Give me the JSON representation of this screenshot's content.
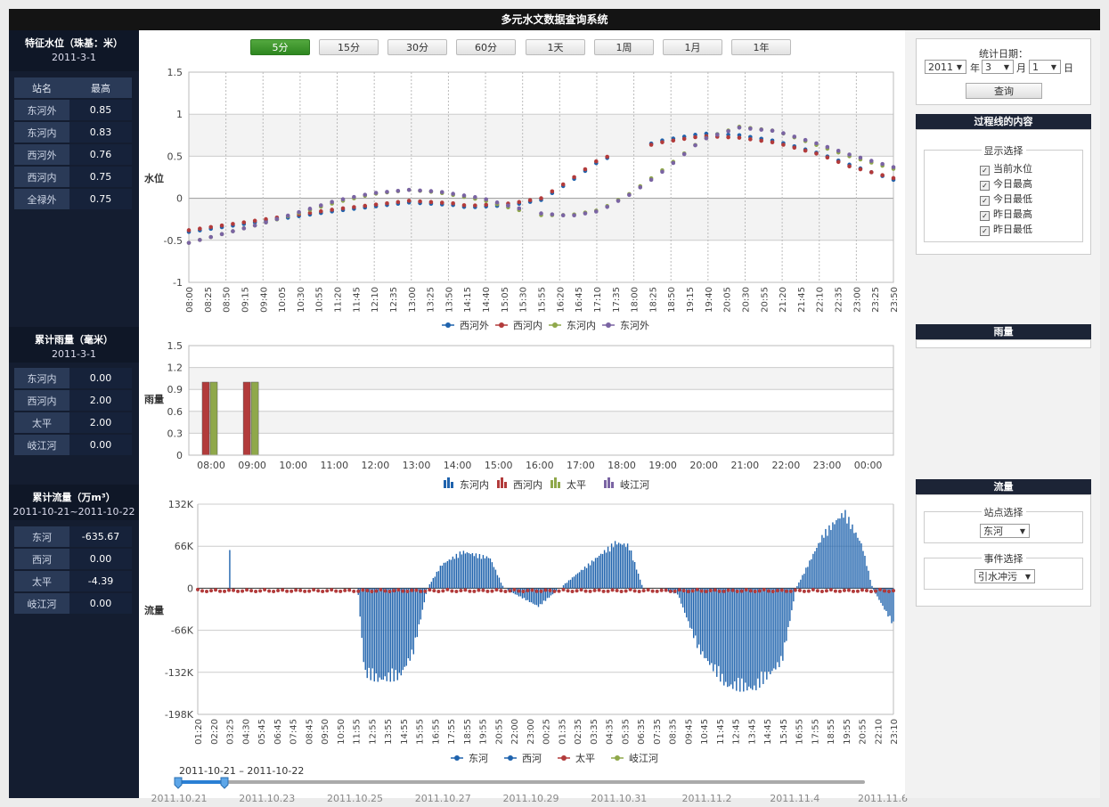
{
  "app": {
    "title": "多元水文数据查询系统"
  },
  "left": {
    "water": {
      "title": "特征水位（珠基：米）",
      "date": "2011-3-1",
      "col_name": "站名",
      "col_value": "最高",
      "rows": [
        {
          "name": "东河外",
          "value": "0.85"
        },
        {
          "name": "东河内",
          "value": "0.83"
        },
        {
          "name": "西河外",
          "value": "0.76"
        },
        {
          "name": "西河内",
          "value": "0.75"
        },
        {
          "name": "全禄外",
          "value": "0.75"
        }
      ]
    },
    "rain": {
      "title": "累计雨量（毫米）",
      "date": "2011-3-1",
      "rows": [
        {
          "name": "东河内",
          "value": "0.00"
        },
        {
          "name": "西河内",
          "value": "2.00"
        },
        {
          "name": "太平",
          "value": "2.00"
        },
        {
          "name": "岐江河",
          "value": "0.00"
        }
      ]
    },
    "flow": {
      "title": "累计流量（万m³）",
      "date": "2011-10-21~2011-10-22",
      "rows": [
        {
          "name": "东河",
          "value": "-635.67"
        },
        {
          "name": "西河",
          "value": "0.00"
        },
        {
          "name": "太平",
          "value": "-4.39"
        },
        {
          "name": "岐江河",
          "value": "0.00"
        }
      ]
    }
  },
  "toolbar": {
    "buttons": [
      "5分",
      "15分",
      "30分",
      "60分",
      "1天",
      "1周",
      "1月",
      "1年"
    ],
    "active": "5分"
  },
  "right": {
    "date_label": "统计日期：",
    "year": "2011",
    "year_unit": "年",
    "month": "3",
    "month_unit": "月",
    "day": "1",
    "day_unit": "日",
    "query_label": "查询",
    "process_title": "过程线的内容",
    "display_legend": "显示选择",
    "checks": [
      "当前水位",
      "今日最高",
      "今日最低",
      "昨日最高",
      "昨日最低"
    ],
    "rain_title": "雨量",
    "flow_title": "流量",
    "station_legend": "站点选择",
    "station_value": "东河",
    "event_legend": "事件选择",
    "event_value": "引水冲污"
  },
  "colors": {
    "blue": "#1f63ad",
    "red": "#b23b3b",
    "green": "#8fa84a",
    "purple": "#7a64a3",
    "active_green": "#3a9a2c",
    "dark": "#141d30"
  },
  "chart_data": [
    {
      "type": "scatter",
      "ylabel": "水位",
      "ylim": [
        -1,
        1.5
      ],
      "yticks": [
        "1.5",
        "1",
        "0.5",
        "0",
        "-0.5",
        "-1"
      ],
      "xticks": [
        "08:00",
        "08:25",
        "08:50",
        "09:15",
        "09:40",
        "10:05",
        "10:30",
        "10:55",
        "11:20",
        "11:45",
        "12:10",
        "12:35",
        "13:00",
        "13:25",
        "13:50",
        "14:15",
        "14:40",
        "15:05",
        "15:30",
        "15:55",
        "16:20",
        "16:45",
        "17:10",
        "17:35",
        "18:00",
        "18:25",
        "18:50",
        "19:15",
        "19:40",
        "20:05",
        "20:30",
        "20:55",
        "21:20",
        "21:45",
        "22:10",
        "22:35",
        "23:00",
        "23:25",
        "23:50"
      ],
      "series": [
        {
          "name": "西河外",
          "color": "#1f63ad",
          "key_x": [
            0,
            20,
            30,
            36,
            38,
            44,
            48,
            52,
            56,
            64,
            70,
            75,
            80,
            86,
            90,
            96
          ],
          "key_y": [
            -0.4,
            -0.15,
            -0.05,
            -0.08,
            -0.11,
            -0.08,
            -0.02,
            0.2,
            0.45,
            0.68,
            0.77,
            0.75,
            0.68,
            0.53,
            0.4,
            0.22
          ]
        },
        {
          "name": "西河内",
          "color": "#b23b3b",
          "key_x": [
            0,
            20,
            30,
            36,
            38,
            44,
            48,
            52,
            56,
            64,
            70,
            75,
            80,
            86,
            90,
            96
          ],
          "key_y": [
            -0.38,
            -0.13,
            -0.03,
            -0.06,
            -0.09,
            -0.06,
            0,
            0.22,
            0.47,
            0.66,
            0.74,
            0.72,
            0.66,
            0.52,
            0.38,
            0.24
          ]
        },
        {
          "name": "东河内",
          "color": "#8fa84a",
          "key_x": [
            0,
            10,
            20,
            25,
            30,
            34,
            40,
            44,
            48,
            52,
            56,
            60,
            64,
            70,
            75,
            80,
            86,
            90,
            96
          ],
          "key_y": [
            -0.53,
            -0.3,
            -0.05,
            0.05,
            0.1,
            0.07,
            -0.02,
            -0.12,
            -0.2,
            -0.2,
            -0.14,
            0.05,
            0.3,
            0.7,
            0.85,
            0.8,
            0.62,
            0.5,
            0.35
          ]
        },
        {
          "name": "东河外",
          "color": "#7a64a3",
          "key_x": [
            0,
            10,
            20,
            25,
            30,
            34,
            40,
            44,
            48,
            52,
            56,
            60,
            64,
            70,
            75,
            80,
            86,
            90,
            96
          ],
          "key_y": [
            -0.53,
            -0.3,
            -0.03,
            0.06,
            0.1,
            0.08,
            0,
            -0.1,
            -0.18,
            -0.21,
            -0.15,
            0.04,
            0.28,
            0.7,
            0.84,
            0.8,
            0.64,
            0.52,
            0.37
          ]
        }
      ]
    },
    {
      "type": "bar",
      "ylabel": "雨量",
      "ylim": [
        0,
        1.5
      ],
      "yticks": [
        "1.5",
        "1.2",
        "0.9",
        "0.6",
        "0.3",
        "0"
      ],
      "categories": [
        "08:00",
        "09:00",
        "10:00",
        "11:00",
        "12:00",
        "13:00",
        "14:00",
        "15:00",
        "16:00",
        "17:00",
        "18:00",
        "19:00",
        "20:00",
        "21:00",
        "22:00",
        "23:00",
        "00:00"
      ],
      "series": [
        {
          "name": "东河内",
          "color": "#1f63ad",
          "values": [
            0,
            0,
            0,
            0,
            0,
            0,
            0,
            0,
            0,
            0,
            0,
            0,
            0,
            0,
            0,
            0,
            0
          ]
        },
        {
          "name": "西河内",
          "color": "#b23b3b",
          "values": [
            1,
            1,
            0,
            0,
            0,
            0,
            0,
            0,
            0,
            0,
            0,
            0,
            0,
            0,
            0,
            0,
            0
          ]
        },
        {
          "name": "太平",
          "color": "#8fa84a",
          "values": [
            1,
            1,
            0,
            0,
            0,
            0,
            0,
            0,
            0,
            0,
            0,
            0,
            0,
            0,
            0,
            0,
            0
          ]
        },
        {
          "name": "岐江河",
          "color": "#7a64a3",
          "values": [
            0,
            0,
            0,
            0,
            0,
            0,
            0,
            0,
            0,
            0,
            0,
            0,
            0,
            0,
            0,
            0,
            0
          ]
        }
      ]
    },
    {
      "type": "bar",
      "ylabel": "流量",
      "ylim": [
        -198,
        132
      ],
      "yticks": [
        "132K",
        "66K",
        "0",
        "-66K",
        "-132K",
        "-198K"
      ],
      "xticks": [
        "01:20",
        "02:20",
        "03:25",
        "04:30",
        "05:45",
        "06:45",
        "07:45",
        "08:45",
        "09:50",
        "10:50",
        "11:55",
        "12:55",
        "13:55",
        "14:55",
        "15:55",
        "16:55",
        "17:55",
        "18:55",
        "19:55",
        "20:55",
        "22:00",
        "23:00",
        "00:25",
        "01:35",
        "02:35",
        "03:35",
        "04:35",
        "05:35",
        "06:35",
        "07:35",
        "08:35",
        "09:45",
        "10:45",
        "11:45",
        "12:45",
        "13:45",
        "14:45",
        "15:45",
        "16:55",
        "17:55",
        "18:55",
        "19:55",
        "20:55",
        "22:10",
        "23:10"
      ],
      "series": [
        {
          "name": "东河",
          "color": "#1f63ad",
          "key_x": [
            0,
            0.23,
            0.24,
            0.26,
            0.29,
            0.31,
            0.33,
            0.35,
            0.38,
            0.42,
            0.44,
            0.49,
            0.52,
            0.6,
            0.62,
            0.64,
            0.66,
            0.69,
            0.72,
            0.76,
            0.8,
            0.84,
            0.86,
            0.9,
            0.93,
            0.955,
            0.97,
            1
          ],
          "key_y": [
            0,
            0,
            -140,
            -150,
            -145,
            -105,
            0,
            38,
            60,
            50,
            0,
            -30,
            0,
            75,
            70,
            0,
            0,
            -10,
            -100,
            -160,
            -165,
            -120,
            0,
            90,
            125,
            70,
            0,
            -60
          ]
        },
        {
          "name": "西河",
          "color": "#1f63ad",
          "key_x": [
            0,
            1
          ],
          "key_y": [
            0,
            0
          ]
        },
        {
          "name": "太平",
          "color": "#b23b3b",
          "key_x": [
            0,
            1
          ],
          "key_y": [
            -4,
            -4
          ]
        },
        {
          "name": "岐江河",
          "color": "#8fa84a",
          "key_x": [
            0,
            1
          ],
          "key_y": [
            0,
            0
          ]
        }
      ]
    }
  ],
  "range": {
    "label": "2011-10-21 – 2011-10-22",
    "dates": [
      "2011.10.21",
      "2011.10.23",
      "2011.10.25",
      "2011.10.27",
      "2011.10.29",
      "2011.10.31",
      "2011.11.2",
      "2011.11.4",
      "2011.11.6"
    ]
  }
}
